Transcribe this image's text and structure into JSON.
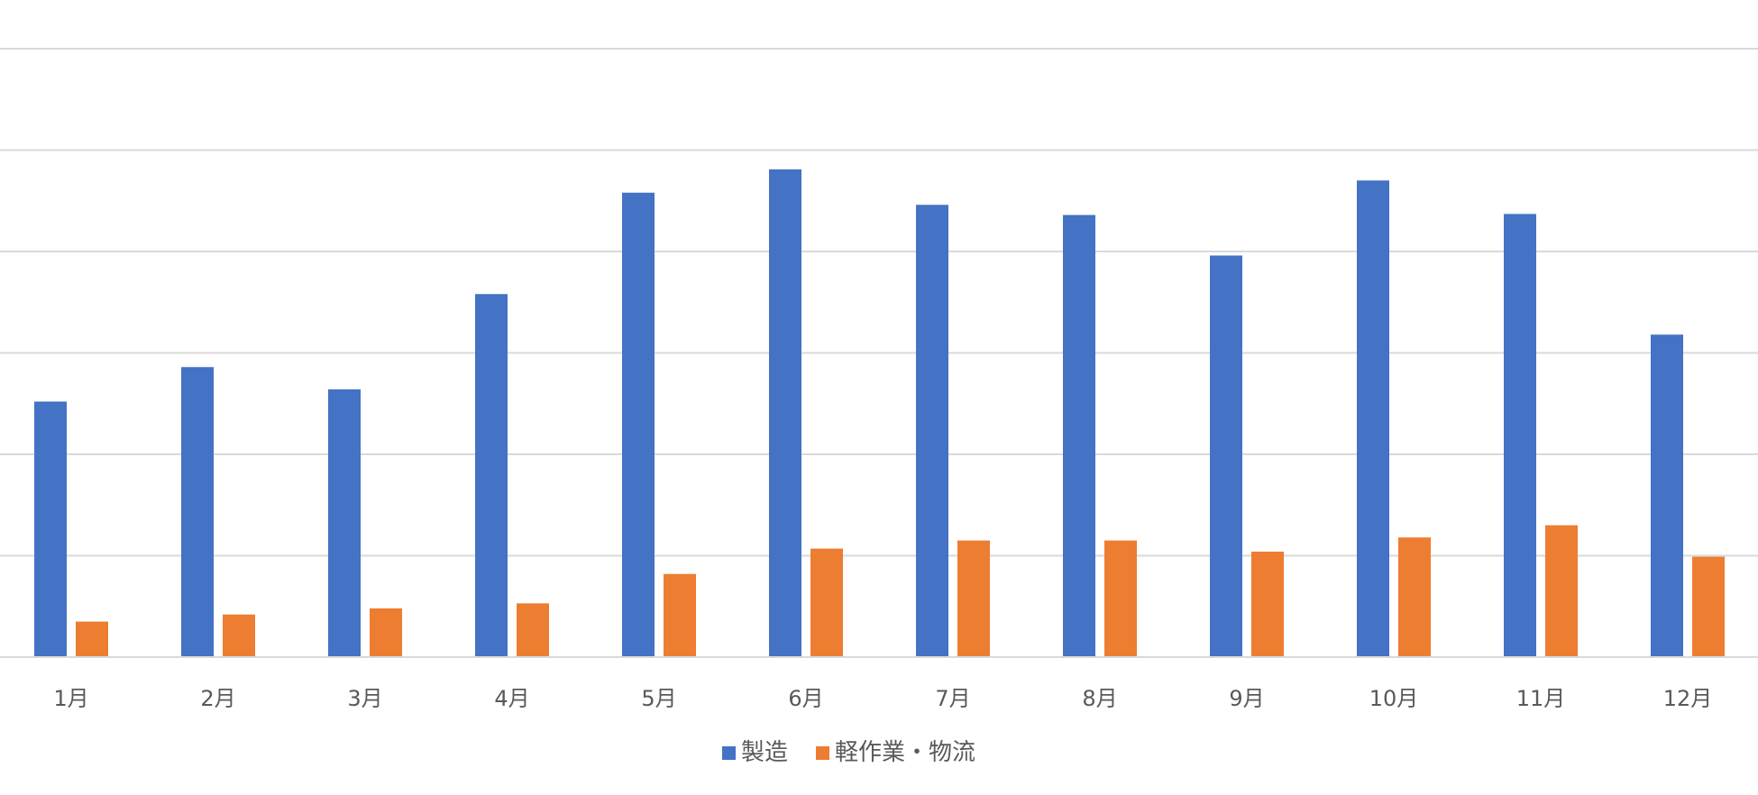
{
  "chart_data": {
    "type": "bar",
    "categories": [
      "1月",
      "2月",
      "3月",
      "4月",
      "5月",
      "6月",
      "7月",
      "8月",
      "9月",
      "10月",
      "11月",
      "12月"
    ],
    "series": [
      {
        "name": "製造",
        "color": "#4472C4",
        "values": [
          252,
          286,
          264,
          358,
          458,
          481,
          446,
          436,
          396,
          470,
          437,
          318
        ]
      },
      {
        "name": "軽作業・物流",
        "color": "#ED7D31",
        "values": [
          35,
          42,
          48,
          53,
          82,
          107,
          115,
          115,
          104,
          118,
          130,
          99
        ]
      }
    ],
    "ylim": [
      0,
      600
    ],
    "y_gridline_step": 100,
    "grid": true,
    "legend_position": "bottom-center",
    "title": "",
    "xlabel": "",
    "ylabel": ""
  }
}
